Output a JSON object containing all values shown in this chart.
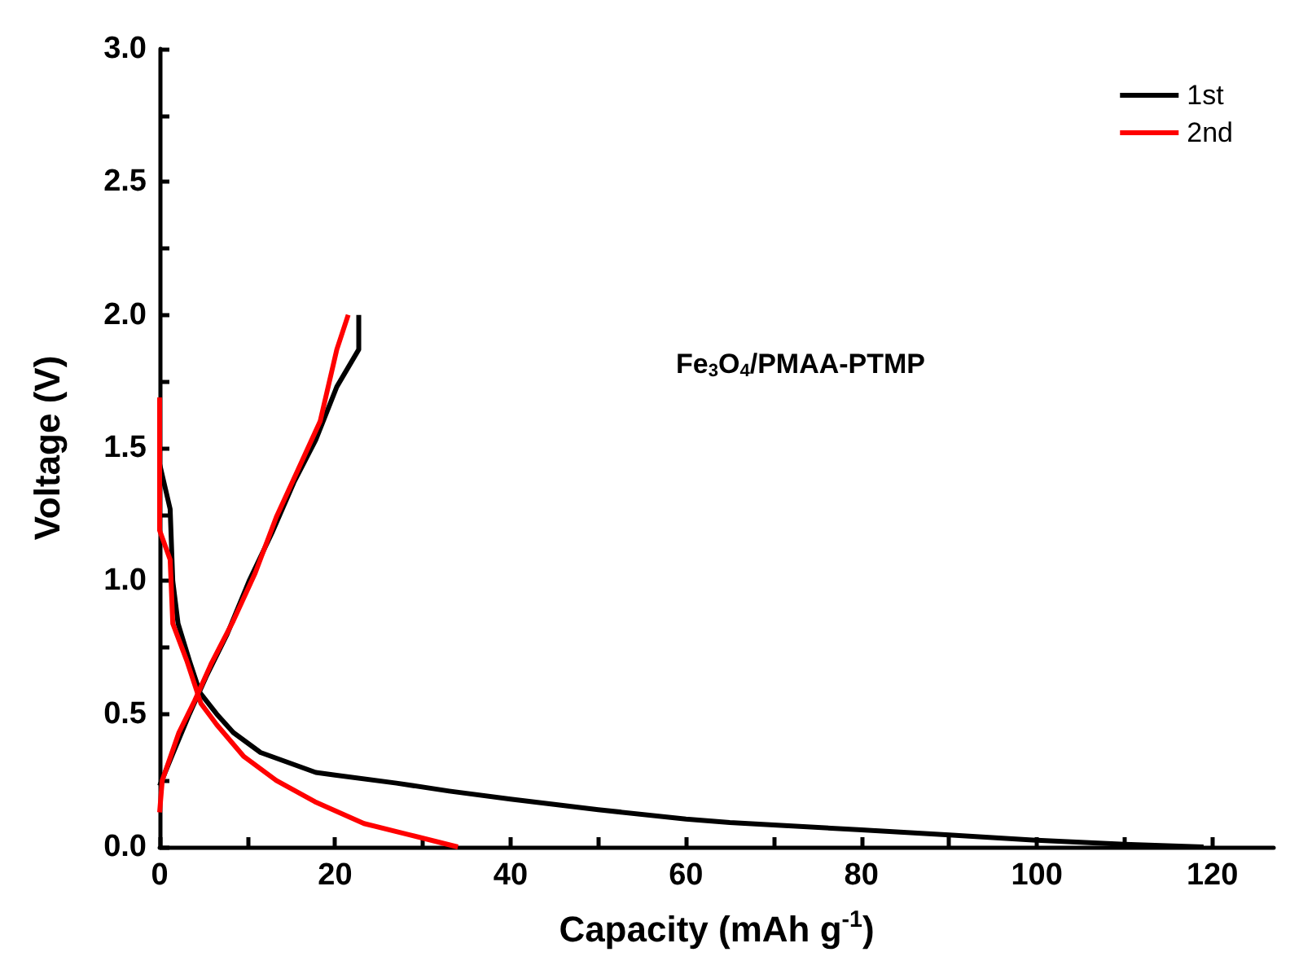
{
  "chart_data": {
    "type": "line",
    "xlabel": "Capacity (mAh g$^{-1}$)",
    "ylabel": "Voltage (V)",
    "annotations": [
      "Fe$_{3}$O$_{4}$/PMAA-PTMP"
    ],
    "xlim": [
      0,
      127
    ],
    "xticks": [
      0,
      {
        "value": 10,
        "label": null
      },
      20,
      {
        "value": 30,
        "label": null
      },
      40,
      {
        "value": 50,
        "label": null
      },
      60,
      {
        "value": 70,
        "label": null
      },
      80,
      {
        "value": 90,
        "label": null
      },
      100,
      {
        "value": 110,
        "label": null
      },
      120
    ],
    "ylim": [
      0,
      3
    ],
    "yticks": [
      {
        "value": 0,
        "label": "0.0"
      },
      {
        "value": 0.25,
        "label": null
      },
      {
        "value": 0.5,
        "label": "0.5"
      },
      {
        "value": 0.75,
        "label": null
      },
      {
        "value": 1,
        "label": "1.0"
      },
      {
        "value": 1.25,
        "label": null
      },
      {
        "value": 1.5,
        "label": "1.5"
      },
      {
        "value": 1.75,
        "label": null
      },
      {
        "value": 2,
        "label": "2.0"
      },
      {
        "value": 2.25,
        "label": null
      },
      {
        "value": 2.5,
        "label": "2.5"
      },
      {
        "value": 2.75,
        "label": null
      },
      {
        "value": 3,
        "label": "3.0"
      }
    ],
    "grid": false,
    "legend": "top right",
    "marker": "none",
    "line_style": "solid",
    "series": [
      {
        "name": "1st",
        "color": "#000000",
        "x": [
          0,
          1.2,
          1.5,
          2.1,
          3.4,
          4.6,
          6.5,
          8.4,
          11.5,
          17.8,
          20,
          27,
          33,
          40,
          50,
          60,
          65,
          80,
          90,
          100,
          110,
          119
        ],
        "values": [
          1.44,
          1.27,
          1.0,
          0.84,
          0.7,
          0.58,
          0.5,
          0.43,
          0.355,
          0.28,
          0.27,
          0.24,
          0.21,
          0.18,
          0.14,
          0.105,
          0.092,
          0.064,
          0.045,
          0.025,
          0.01,
          0
        ]
      },
      {
        "color": "#000000",
        "x": [
          0,
          1.5,
          3.4,
          5.3,
          7.7,
          10.2,
          12.8,
          15.3,
          17.8,
          20.2,
          22.7,
          22.7
        ],
        "values": [
          0.23,
          0.35,
          0.5,
          0.64,
          0.8,
          1.0,
          1.18,
          1.37,
          1.53,
          1.73,
          1.87,
          2.0
        ]
      },
      {
        "name": "2nd",
        "color": "#ff0000",
        "x": [
          0,
          0,
          1.2,
          1.5,
          3.1,
          4.7,
          6.5,
          9.6,
          13.3,
          17.7,
          23.3,
          28.3,
          34
        ],
        "values": [
          1.69,
          1.19,
          1.08,
          0.84,
          0.7,
          0.54,
          0.46,
          0.34,
          0.25,
          0.17,
          0.088,
          0.047,
          0
        ]
      },
      {
        "color": "#ff0000",
        "x": [
          0,
          0.3,
          2.2,
          4.0,
          5.9,
          8.4,
          10.9,
          13.3,
          15.8,
          18.3,
          20.2,
          21.5
        ],
        "values": [
          0.13,
          0.25,
          0.43,
          0.55,
          0.69,
          0.85,
          1.03,
          1.24,
          1.42,
          1.6,
          1.87,
          2.0
        ]
      }
    ]
  }
}
